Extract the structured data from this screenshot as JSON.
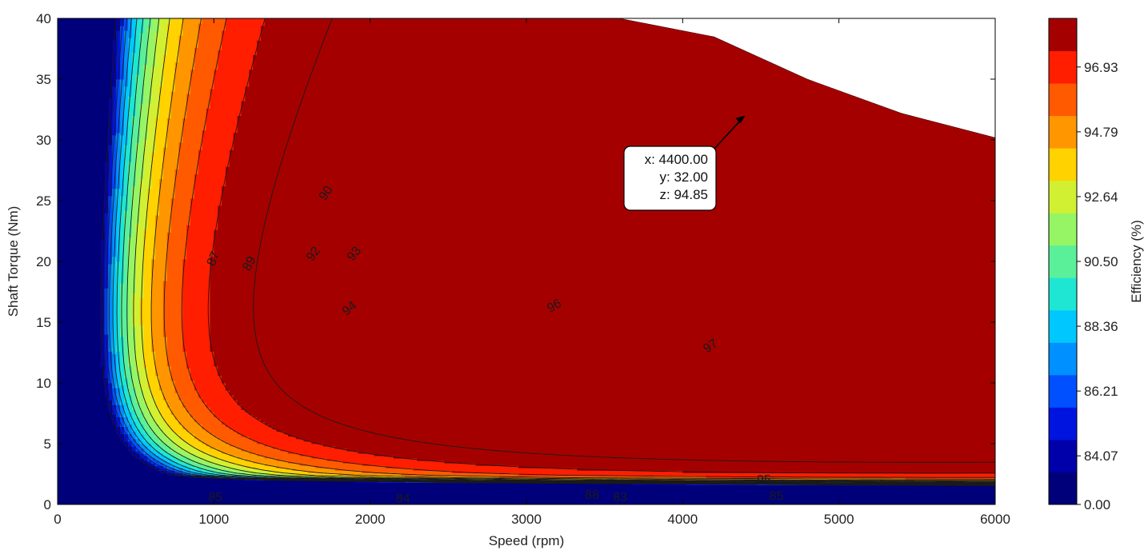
{
  "chart_data": {
    "type": "heatmap",
    "subtype": "filled-contour",
    "title": "",
    "xlabel": "Speed  (rpm)",
    "ylabel": "Shaft Torque  (Nm)",
    "xlim": [
      0,
      6000
    ],
    "ylim": [
      0,
      40
    ],
    "xticks": [
      "0",
      "1000",
      "2000",
      "3000",
      "4000",
      "5000",
      "6000"
    ],
    "yticks": [
      "0",
      "5",
      "10",
      "15",
      "20",
      "25",
      "30",
      "35",
      "40"
    ],
    "grid": false,
    "colorbar": {
      "label": "Efficiency (%)",
      "ticks": [
        "0.00",
        "84.07",
        "86.21",
        "88.36",
        "90.50",
        "92.64",
        "94.79",
        "96.93"
      ],
      "levels": [
        0,
        83,
        84,
        85,
        86,
        87,
        88,
        89,
        90,
        91,
        92,
        93,
        94,
        95,
        96,
        97
      ],
      "colors": [
        "#00007a",
        "#0000aa",
        "#0014e0",
        "#0050ff",
        "#0090ff",
        "#00c8ff",
        "#1ee6d2",
        "#5af09a",
        "#96f564",
        "#d2f032",
        "#ffd200",
        "#ff9600",
        "#ff5a00",
        "#ff1e00",
        "#a50000"
      ]
    },
    "operating_envelope": {
      "speed_rpm": [
        0,
        3600,
        4200,
        4800,
        5400,
        6000
      ],
      "max_torque_nm": [
        40,
        40,
        38.5,
        35,
        32.2,
        30.2
      ]
    },
    "contour_labels": [
      {
        "text": "87",
        "x": 1000,
        "y": 20.2,
        "angle": -67
      },
      {
        "text": "89",
        "x": 1230,
        "y": 19.8,
        "angle": -62
      },
      {
        "text": "90",
        "x": 1720,
        "y": 25.6,
        "angle": -57
      },
      {
        "text": "92",
        "x": 1640,
        "y": 20.6,
        "angle": -53
      },
      {
        "text": "93",
        "x": 1900,
        "y": 20.6,
        "angle": -50
      },
      {
        "text": "94",
        "x": 1870,
        "y": 16.1,
        "angle": -40
      },
      {
        "text": "96",
        "x": 3180,
        "y": 16.3,
        "angle": -30
      },
      {
        "text": "97",
        "x": 4180,
        "y": 13.0,
        "angle": -35
      },
      {
        "text": "95",
        "x": 4520,
        "y": 2.0,
        "angle": 0
      },
      {
        "text": "85",
        "x": 1010,
        "y": 0.55,
        "angle": 0
      },
      {
        "text": "84",
        "x": 2210,
        "y": 0.45,
        "angle": 0
      },
      {
        "text": "88",
        "x": 3420,
        "y": 0.75,
        "angle": 0
      },
      {
        "text": "83",
        "x": 3600,
        "y": 0.55,
        "angle": 0
      },
      {
        "text": "85",
        "x": 4600,
        "y": 0.65,
        "angle": 0
      }
    ],
    "datatip": {
      "x": 4400,
      "y": 32,
      "z": 94.85,
      "lines": [
        "x: 4400.00",
        "y: 32.00",
        "z: 94.85"
      ]
    }
  }
}
